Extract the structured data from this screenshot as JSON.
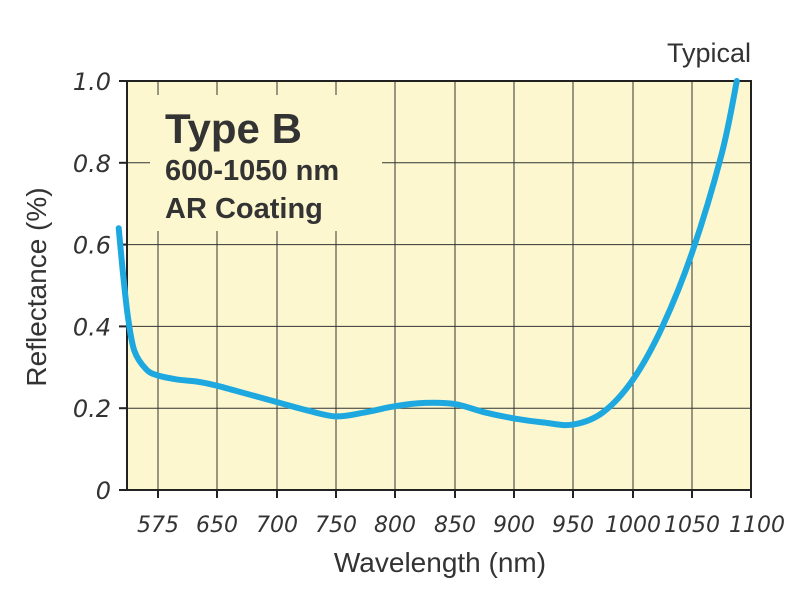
{
  "chart_data": {
    "type": "line",
    "title": "Type B",
    "subtitle_lines": [
      "600-1050 nm",
      "AR Coating"
    ],
    "note": "Typical",
    "xlabel": "Wavelength (nm)",
    "ylabel": "Reflectance (%)",
    "x_ticks": [
      "575",
      "650",
      "700",
      "750",
      "800",
      "850",
      "900",
      "950",
      "1000",
      "1050",
      "1100"
    ],
    "y_ticks": [
      "0",
      "0.2",
      "0.4",
      "0.6",
      "0.8",
      "1.0"
    ],
    "ylim": [
      0,
      1.0
    ],
    "grid": true,
    "background_color": "#fdf7cf",
    "line_color": "#1ea8e0",
    "series": [
      {
        "x": [
          525,
          531,
          537,
          545,
          560,
          575,
          600,
          625,
          650,
          675,
          700,
          725,
          750,
          775,
          800,
          825,
          850,
          875,
          900,
          925,
          950,
          975,
          1000,
          1025,
          1050,
          1075,
          1088
        ],
        "y": [
          0.64,
          0.52,
          0.42,
          0.34,
          0.295,
          0.28,
          0.27,
          0.265,
          0.255,
          0.235,
          0.215,
          0.195,
          0.18,
          0.19,
          0.205,
          0.213,
          0.21,
          0.19,
          0.175,
          0.165,
          0.16,
          0.19,
          0.27,
          0.4,
          0.58,
          0.82,
          1.0
        ]
      }
    ]
  }
}
